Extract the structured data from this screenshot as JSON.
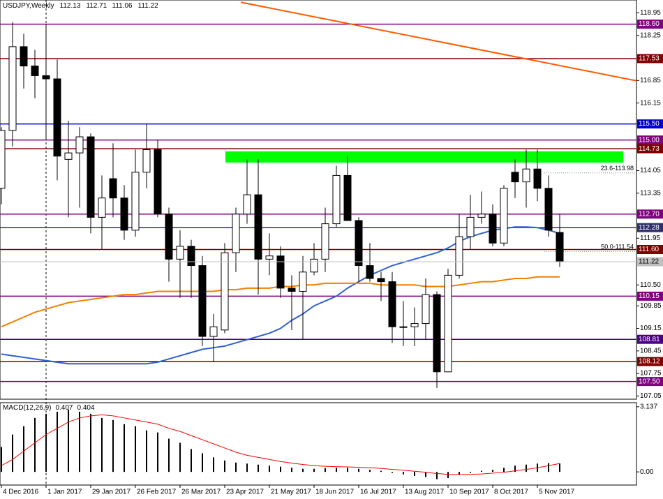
{
  "chart_data": [
    {
      "type": "candlestick",
      "title": "USDJPY,Weekly",
      "categories": [
        "4 Dec 2016",
        null,
        null,
        null,
        "1 Jan 2017",
        null,
        null,
        null,
        "29 Jan 2017",
        null,
        null,
        null,
        "26 Feb 2017",
        null,
        null,
        null,
        "26 Mar 2017",
        null,
        null,
        null,
        "23 Apr 2017",
        null,
        null,
        null,
        "21 May 2017",
        null,
        null,
        null,
        "18 Jun 2017",
        null,
        null,
        null,
        "16 Jul 2017",
        null,
        null,
        null,
        "13 Aug 2017",
        null,
        null,
        null,
        "10 Sep 2017",
        null,
        null,
        null,
        "8 Oct 2017",
        null,
        null,
        null,
        "5 Nov 2017",
        null,
        null
      ],
      "open": [
        113.5,
        115.3,
        117.9,
        117.3,
        117.0,
        116.9,
        114.4,
        114.6,
        115.1,
        112.6,
        113.8,
        113.2,
        112.2,
        114.0,
        114.7,
        112.7,
        111.3,
        111.7,
        111.1,
        108.9,
        109.1,
        111.5,
        112.7,
        113.3,
        111.3,
        111.4,
        110.4,
        110.3,
        110.9,
        111.3,
        112.4,
        113.9,
        112.5,
        111.1,
        110.7,
        110.6,
        109.2,
        109.2,
        109.3,
        110.2,
        107.8,
        110.8,
        112.0,
        112.6,
        112.7,
        111.8,
        114.0,
        113.7,
        114.1,
        113.5,
        112.13
      ],
      "high": [
        115.4,
        118.66,
        118.3,
        117.8,
        118.6,
        117.5,
        115.6,
        115.4,
        115.2,
        113.9,
        114.9,
        113.6,
        114.7,
        115.5,
        115.0,
        112.9,
        112.2,
        111.9,
        111.4,
        109.6,
        111.8,
        112.9,
        114.4,
        114.4,
        112.1,
        111.7,
        110.8,
        111.4,
        111.8,
        112.9,
        114.2,
        114.5,
        112.6,
        111.8,
        110.9,
        110.9,
        110.0,
        109.8,
        110.7,
        110.3,
        111.0,
        112.7,
        113.3,
        113.4,
        113.0,
        113.6,
        114.4,
        114.7,
        114.7,
        113.9,
        112.71
      ],
      "low": [
        113.0,
        114.8,
        116.6,
        116.3,
        115.06,
        113.75,
        112.6,
        112.9,
        112.1,
        111.6,
        112.6,
        111.9,
        112.0,
        113.5,
        112.6,
        110.6,
        110.1,
        110.1,
        108.6,
        108.1,
        109.0,
        110.9,
        112.4,
        110.2,
        110.8,
        110.1,
        109.1,
        108.8,
        110.8,
        110.9,
        112.3,
        112.5,
        110.6,
        110.6,
        110.0,
        108.7,
        108.6,
        108.6,
        108.8,
        107.3,
        107.8,
        110.7,
        111.6,
        112.4,
        111.7,
        111.7,
        113.2,
        112.9,
        113.1,
        112.0,
        111.06
      ],
      "close": [
        115.3,
        117.9,
        117.3,
        117.0,
        116.9,
        114.5,
        114.6,
        115.1,
        112.6,
        113.2,
        113.2,
        112.2,
        114.0,
        114.7,
        112.7,
        111.3,
        111.7,
        111.1,
        108.9,
        109.2,
        111.5,
        112.7,
        113.3,
        111.3,
        111.4,
        110.4,
        110.3,
        110.9,
        111.3,
        112.4,
        113.9,
        112.5,
        111.1,
        110.7,
        110.6,
        109.2,
        109.2,
        109.3,
        110.2,
        107.8,
        110.8,
        112.0,
        112.6,
        112.7,
        111.8,
        113.5,
        113.7,
        114.1,
        113.5,
        112.2,
        111.22
      ],
      "lines": [
        {
          "color": "#3060d0",
          "values": [
            108.35,
            108.3,
            108.25,
            108.2,
            108.15,
            108.1,
            108.05,
            108.05,
            108.05,
            108.05,
            108.05,
            108.05,
            108.05,
            108.05,
            108.1,
            108.2,
            108.3,
            108.4,
            108.5,
            108.55,
            108.6,
            108.7,
            108.8,
            108.9,
            109.0,
            109.15,
            109.4,
            109.6,
            109.85,
            110.0,
            110.15,
            110.4,
            110.6,
            110.8,
            110.95,
            111.1,
            111.2,
            111.3,
            111.4,
            111.5,
            111.65,
            111.85,
            112.0,
            112.1,
            112.2,
            112.25,
            112.3,
            112.3,
            112.28,
            112.2,
            112.1
          ]
        },
        {
          "color": "#f08000",
          "values": [
            109.2,
            109.35,
            109.5,
            109.65,
            109.75,
            109.85,
            109.95,
            110.0,
            110.05,
            110.1,
            110.15,
            110.2,
            110.2,
            110.25,
            110.3,
            110.3,
            110.3,
            110.3,
            110.3,
            110.3,
            110.35,
            110.35,
            110.4,
            110.4,
            110.4,
            110.45,
            110.45,
            110.5,
            110.5,
            110.55,
            110.55,
            110.55,
            110.55,
            110.55,
            110.5,
            110.5,
            110.5,
            110.5,
            110.45,
            110.45,
            110.45,
            110.5,
            110.55,
            110.6,
            110.6,
            110.65,
            110.7,
            110.7,
            110.75,
            110.75,
            110.75
          ]
        }
      ],
      "levels": [
        {
          "value": 118.6,
          "label": "118.60",
          "color": "#800080"
        },
        {
          "value": 117.53,
          "label": "117.53",
          "color": "#800000"
        },
        {
          "value": 115.5,
          "label": "115.50",
          "color": "#0000c8"
        },
        {
          "value": 115,
          "label": "115.00",
          "color": "#800080"
        },
        {
          "value": 114.73,
          "label": "114.73",
          "color": "#800000"
        },
        {
          "value": 112.7,
          "label": "112.70",
          "color": "#800080"
        },
        {
          "value": 112.28,
          "label": "112.28",
          "color": "#303070"
        },
        {
          "value": 111.6,
          "label": "111.60",
          "color": "#800000"
        },
        {
          "value": 110.15,
          "label": "110.15",
          "color": "#800080"
        },
        {
          "value": 108.81,
          "label": "108.81",
          "color": "#4b0082"
        },
        {
          "value": 108.12,
          "label": "108.12",
          "color": "#800000"
        },
        {
          "value": 107.5,
          "label": "107.50",
          "color": "#800080"
        }
      ],
      "current": {
        "value": 111.22,
        "label": "111.22",
        "color": "#c0c0c0"
      },
      "fibo": [
        {
          "value": 113.98,
          "label": "23.6-113.98"
        },
        {
          "value": 111.54,
          "label": "50.0-111.54"
        }
      ],
      "zone": {
        "from": 114.3,
        "to": 114.65,
        "color": "#00ff00"
      },
      "trendline": {
        "values": [
          119.28,
          116.84
        ],
        "color": "#ff5a00"
      },
      "ylim": [
        106.95,
        119.35
      ],
      "yticks": [
        118.95,
        118.25,
        116.85,
        116.15,
        114.05,
        113.35,
        111.95,
        {
          "value": 110.5,
          "label": "110.50"
        },
        109.85,
        109.15,
        108.45,
        107.75,
        107.05
      ]
    },
    {
      "type": "macd",
      "title": "MACD(12,26,9)",
      "series": [
        {
          "color": "#000000",
          "values": [
            1.2,
            1.8,
            2.2,
            2.6,
            2.8,
            2.9,
            3.0,
            2.9,
            2.8,
            2.6,
            2.5,
            2.3,
            2.2,
            2.0,
            1.9,
            1.6,
            1.4,
            1.1,
            0.9,
            0.7,
            0.55,
            0.45,
            0.4,
            0.35,
            0.3,
            0.25,
            0.2,
            0.15,
            0.15,
            0.18,
            0.2,
            0.2,
            0.15,
            0.1,
            0.05,
            -0.05,
            -0.12,
            -0.2,
            -0.25,
            -0.35,
            -0.3,
            -0.15,
            -0.05,
            0.05,
            0.1,
            0.2,
            0.3,
            0.35,
            0.4,
            0.42,
            0.407
          ]
        },
        {
          "color": "#ff0000",
          "values": [
            0.3,
            0.6,
            1.0,
            1.4,
            1.8,
            2.1,
            2.4,
            2.6,
            2.7,
            2.75,
            2.7,
            2.6,
            2.5,
            2.4,
            2.3,
            2.1,
            1.95,
            1.75,
            1.55,
            1.35,
            1.15,
            0.95,
            0.8,
            0.7,
            0.6,
            0.5,
            0.42,
            0.36,
            0.3,
            0.27,
            0.25,
            0.24,
            0.22,
            0.2,
            0.17,
            0.12,
            0.08,
            0.03,
            -0.02,
            -0.08,
            -0.12,
            -0.13,
            -0.12,
            -0.1,
            -0.06,
            -0.02,
            0.05,
            0.12,
            0.2,
            0.3,
            0.404
          ]
        }
      ],
      "ylim": [
        -0.6,
        3.3
      ],
      "yticks": [
        3.137,
        {
          "value": 0,
          "label": "0.00"
        }
      ]
    }
  ]
}
